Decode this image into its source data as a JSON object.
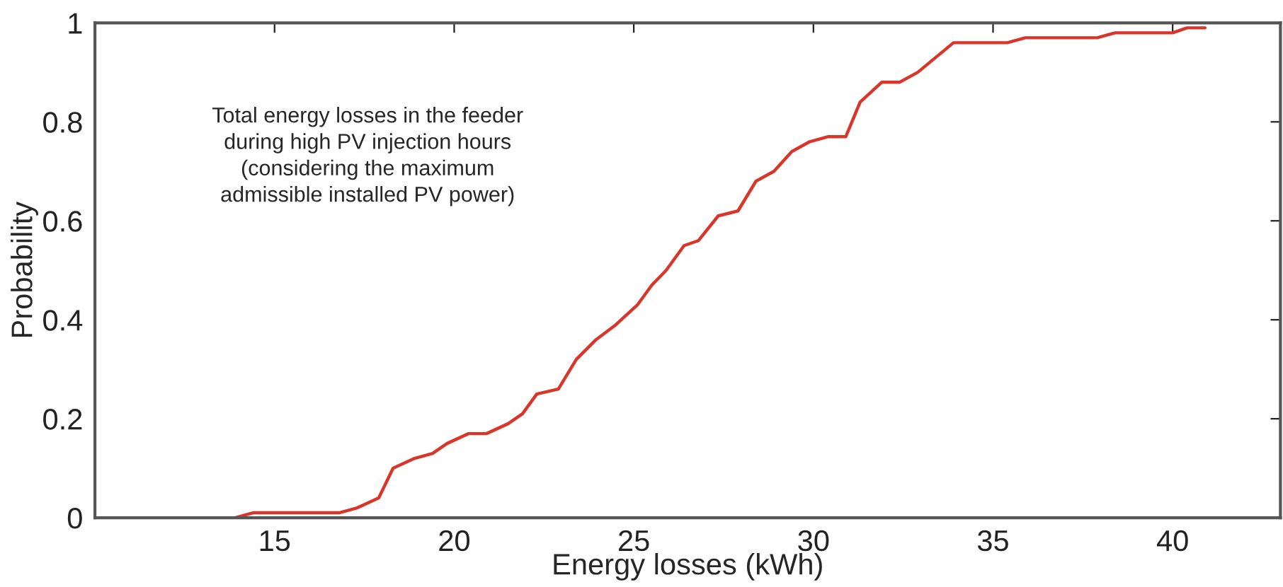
{
  "chart_data": {
    "type": "line",
    "xlabel": "Energy losses (kWh)",
    "ylabel": "Probability",
    "annotations": [
      "Total energy losses in the feeder\nduring high PV injection hours\n(considering the maximum\nadmissible installed PV power)"
    ],
    "series": [
      {
        "color": "#d9362b",
        "x": [
          13.9,
          14.4,
          16.8,
          17.3,
          17.9,
          18.3,
          18.9,
          19.4,
          19.8,
          20.4,
          20.9,
          21.5,
          21.9,
          22.3,
          22.9,
          23.4,
          23.95,
          24.5,
          25.1,
          25.5,
          25.9,
          26.4,
          26.8,
          27.35,
          27.9,
          28.4,
          28.9,
          29.4,
          29.9,
          30.4,
          30.9,
          31.3,
          31.9,
          32.4,
          32.9,
          33.4,
          33.9,
          35.4,
          35.9,
          37.9,
          38.4,
          40.0,
          40.4,
          40.9
        ],
        "values": [
          0,
          0.01,
          0.01,
          0.02,
          0.04,
          0.1,
          0.12,
          0.13,
          0.15,
          0.17,
          0.17,
          0.19,
          0.21,
          0.25,
          0.26,
          0.32,
          0.36,
          0.39,
          0.43,
          0.47,
          0.5,
          0.55,
          0.56,
          0.61,
          0.62,
          0.68,
          0.7,
          0.74,
          0.76,
          0.77,
          0.77,
          0.84,
          0.88,
          0.88,
          0.9,
          0.93,
          0.96,
          0.96,
          0.97,
          0.97,
          0.98,
          0.98,
          0.99,
          0.99
        ]
      }
    ],
    "xlim": [
      10,
      43
    ],
    "ylim": [
      0,
      1
    ],
    "xticks": [
      15,
      20,
      25,
      30,
      35,
      40
    ],
    "yticks": [
      0,
      0.2,
      0.4,
      0.6,
      0.8,
      1
    ],
    "grid": false,
    "marker": "none",
    "line_style": "solid"
  }
}
